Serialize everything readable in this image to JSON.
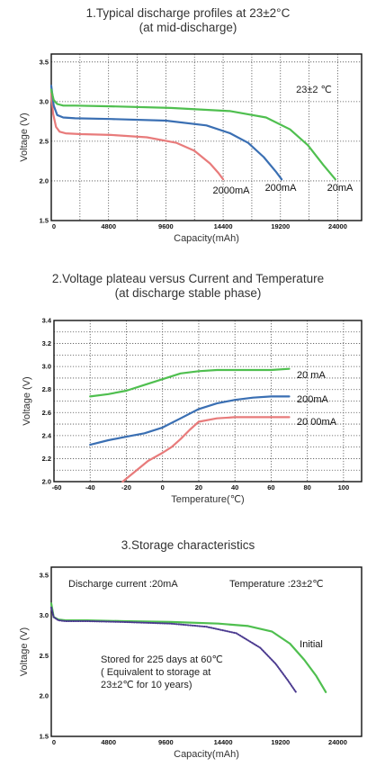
{
  "chart_data": [
    {
      "type": "line",
      "title": "1.Typical discharge profiles at 23±2°C",
      "subtitle": "(at mid-discharge)",
      "xlabel": "Capacity(mAh)",
      "ylabel": "Voltage (V)",
      "xlim": [
        0,
        26000
      ],
      "ylim": [
        1.5,
        3.6
      ],
      "xticks": [
        "0",
        "4800",
        "9600",
        "14400",
        "19200",
        "24000"
      ],
      "yticks": [
        "1.5",
        "2.0",
        "2.5",
        "3.0",
        "3.5"
      ],
      "annotation": "23±2 ℃",
      "grid": true,
      "series": [
        {
          "name": "2000mA",
          "color": "#e87b7b",
          "x": [
            0,
            150,
            400,
            700,
            1200,
            2500,
            5000,
            8000,
            10500,
            12000,
            13300,
            14000,
            14400
          ],
          "y": [
            3.1,
            2.85,
            2.68,
            2.62,
            2.6,
            2.59,
            2.58,
            2.55,
            2.48,
            2.38,
            2.22,
            2.1,
            2.02
          ]
        },
        {
          "name": "200mA",
          "color": "#3a6fb3",
          "x": [
            0,
            200,
            500,
            1000,
            2000,
            5000,
            9600,
            13000,
            15000,
            16500,
            17800,
            18800,
            19300
          ],
          "y": [
            3.2,
            2.95,
            2.83,
            2.8,
            2.79,
            2.78,
            2.76,
            2.7,
            2.6,
            2.48,
            2.3,
            2.12,
            2.02
          ]
        },
        {
          "name": "20mA",
          "color": "#4fbf4f",
          "x": [
            0,
            200,
            500,
            1000,
            2000,
            5000,
            10000,
            15000,
            18000,
            20000,
            21500,
            22800,
            23800
          ],
          "y": [
            3.15,
            3.02,
            2.97,
            2.95,
            2.95,
            2.94,
            2.92,
            2.88,
            2.8,
            2.65,
            2.45,
            2.2,
            2.02
          ]
        }
      ]
    },
    {
      "type": "line",
      "title": "2.Voltage plateau versus Current and Temperature",
      "subtitle": "(at discharge stable phase)",
      "xlabel": "Temperature(℃)",
      "ylabel": "Voltage (V)",
      "xlim": [
        -60,
        110
      ],
      "ylim": [
        2.0,
        3.4
      ],
      "xticks": [
        "-60",
        "-40",
        "-20",
        "0",
        "20",
        "40",
        "60",
        "80",
        "100"
      ],
      "yticks": [
        "2.0",
        "2.2",
        "2.4",
        "2.6",
        "2.8",
        "3.0",
        "3.2",
        "3.4"
      ],
      "grid": true,
      "series": [
        {
          "name": "20 mA",
          "color": "#4fbf4f",
          "x": [
            -40,
            -30,
            -20,
            -10,
            0,
            10,
            20,
            30,
            40,
            50,
            60,
            70
          ],
          "y": [
            2.74,
            2.76,
            2.79,
            2.84,
            2.89,
            2.94,
            2.96,
            2.97,
            2.97,
            2.97,
            2.97,
            2.98
          ]
        },
        {
          "name": "200mA",
          "color": "#3a6fb3",
          "x": [
            -40,
            -30,
            -20,
            -10,
            0,
            10,
            20,
            30,
            40,
            50,
            60,
            70
          ],
          "y": [
            2.32,
            2.36,
            2.39,
            2.42,
            2.47,
            2.55,
            2.63,
            2.68,
            2.71,
            2.73,
            2.74,
            2.74
          ]
        },
        {
          "name": "20 00mA",
          "color": "#e87b7b",
          "x": [
            -22,
            -15,
            -8,
            0,
            5,
            10,
            15,
            20,
            30,
            40,
            50,
            60,
            70
          ],
          "y": [
            2.0,
            2.09,
            2.18,
            2.25,
            2.3,
            2.37,
            2.45,
            2.52,
            2.55,
            2.56,
            2.56,
            2.56,
            2.56
          ]
        }
      ]
    },
    {
      "type": "line",
      "title": "3.Storage characteristics",
      "xlabel": "Capacity(mAh)",
      "ylabel": "Voltage (V)",
      "xlim": [
        0,
        26000
      ],
      "ylim": [
        1.5,
        3.6
      ],
      "xticks": [
        "0",
        "4800",
        "9600",
        "14400",
        "19200",
        "24000"
      ],
      "yticks": [
        "1.5",
        "2.0",
        "2.5",
        "3.0",
        "3.5"
      ],
      "annotations": {
        "discharge_current": "Discharge current :20mA",
        "temperature": "Temperature :23±2℃",
        "stored_line1": "Stored for 225 days at 60℃",
        "stored_line2": "( Equivalent to storage at",
        "stored_line3": "23±2℃ for 10 years)"
      },
      "grid": false,
      "series": [
        {
          "name": "Initial",
          "color": "#4fbf4f",
          "x": [
            0,
            200,
            600,
            1200,
            3000,
            6000,
            10000,
            14000,
            16500,
            18500,
            20000,
            21200,
            22200,
            23000
          ],
          "y": [
            3.15,
            2.98,
            2.95,
            2.94,
            2.94,
            2.93,
            2.92,
            2.9,
            2.87,
            2.8,
            2.65,
            2.45,
            2.25,
            2.05
          ]
        },
        {
          "name": "",
          "color": "#4b3a8f",
          "dotted": true,
          "x": [
            0,
            200,
            600,
            1200,
            3000,
            6000,
            10000,
            13000,
            15500,
            17500,
            18800,
            19800,
            20500
          ],
          "y": [
            3.1,
            2.98,
            2.94,
            2.93,
            2.93,
            2.92,
            2.9,
            2.86,
            2.78,
            2.6,
            2.4,
            2.2,
            2.05
          ]
        }
      ]
    }
  ]
}
